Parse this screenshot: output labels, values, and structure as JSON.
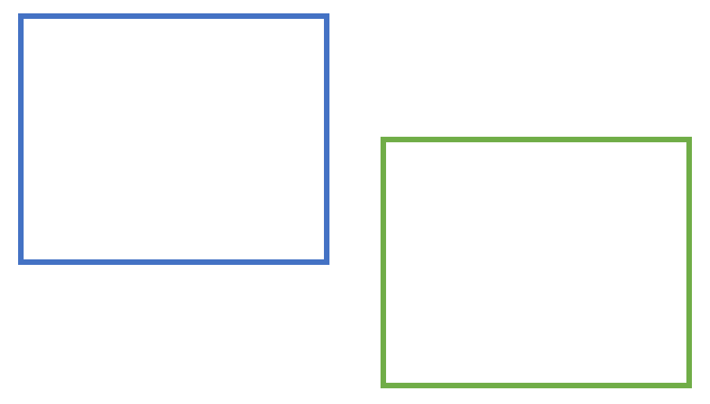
{
  "shapes": [
    {
      "name": "blue-rectangle",
      "stroke_color": "#4472C4",
      "fill": "none"
    },
    {
      "name": "green-rectangle",
      "stroke_color": "#70AD47",
      "fill": "none"
    }
  ],
  "background_color": "#FFFFFF"
}
